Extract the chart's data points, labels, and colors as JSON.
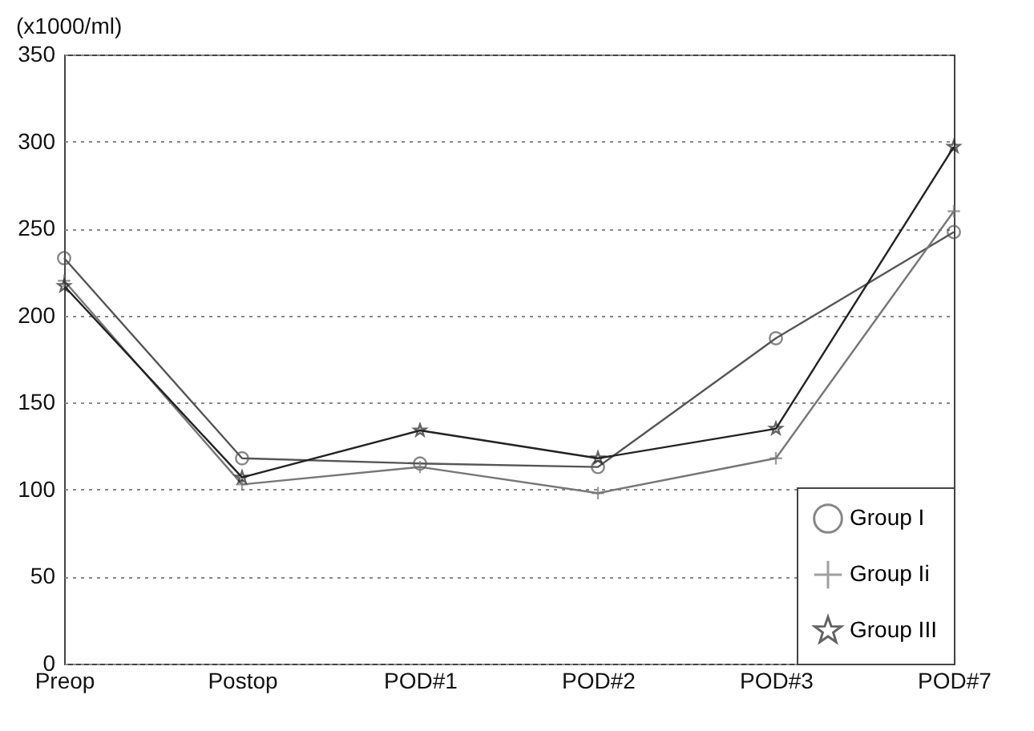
{
  "chart_data": {
    "type": "line",
    "ylabel": "(x1000/ml)",
    "categories": [
      "Preop",
      "Postop",
      "POD#1",
      "POD#2",
      "POD#3",
      "POD#7"
    ],
    "series": [
      {
        "name": "Group I",
        "color": "#555555",
        "marker": "circle",
        "values": [
          233,
          118,
          115,
          113,
          187,
          248
        ]
      },
      {
        "name": "Group Ii",
        "color": "#777777",
        "marker": "cross",
        "values": [
          220,
          103,
          113,
          98,
          118,
          260
        ]
      },
      {
        "name": "Group III",
        "color": "#222222",
        "marker": "star",
        "values": [
          217,
          107,
          134,
          118,
          135,
          297
        ]
      }
    ],
    "ylim": [
      0,
      350
    ],
    "yticks": [
      0,
      50,
      100,
      150,
      200,
      250,
      300,
      350
    ],
    "grid": "y",
    "legend": "bottom right"
  }
}
